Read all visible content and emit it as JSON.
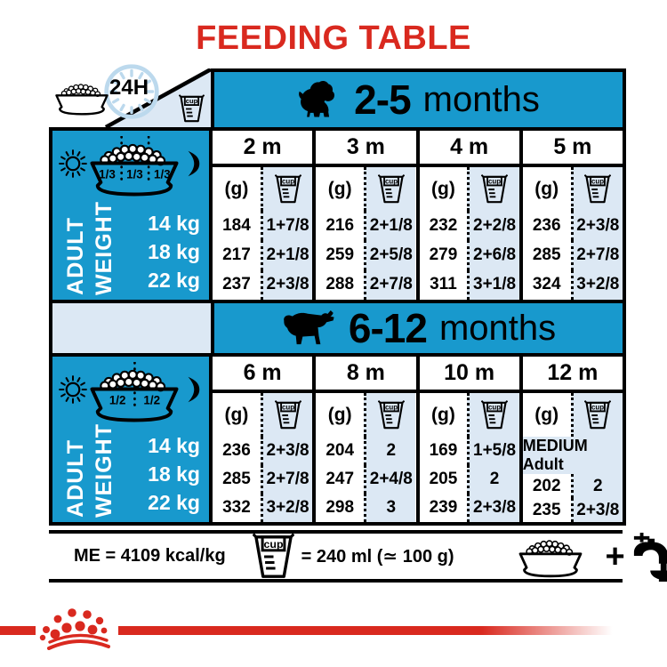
{
  "title": "FEEDING TABLE",
  "corner": {
    "daily_label": "24H",
    "cup_label": "cup"
  },
  "sidebar": {
    "weight_word_1": "ADULT",
    "weight_word_2": "WEIGHT"
  },
  "sections": [
    {
      "age_bold": "2-5",
      "age_rest": "months",
      "dog_icon": "puppy-silhouette",
      "portions": [
        "1/3",
        "1/3",
        "1/3"
      ],
      "weights": [
        "14 kg",
        "18 kg",
        "22 kg"
      ],
      "unit": "(g)",
      "columns": [
        {
          "month": "2 m",
          "grams": [
            "184",
            "217",
            "237"
          ],
          "cups": [
            "1+7/8",
            "2+1/8",
            "2+3/8"
          ]
        },
        {
          "month": "3 m",
          "grams": [
            "216",
            "259",
            "288"
          ],
          "cups": [
            "2+1/8",
            "2+5/8",
            "2+7/8"
          ]
        },
        {
          "month": "4 m",
          "grams": [
            "232",
            "279",
            "311"
          ],
          "cups": [
            "2+2/8",
            "2+6/8",
            "3+1/8"
          ]
        },
        {
          "month": "5 m",
          "grams": [
            "236",
            "285",
            "324"
          ],
          "cups": [
            "2+3/8",
            "2+7/8",
            "3+2/8"
          ]
        }
      ]
    },
    {
      "age_bold": "6-12",
      "age_rest": "months",
      "dog_icon": "adult-dog-silhouette",
      "portions": [
        "1/2",
        "1/2"
      ],
      "weights": [
        "14 kg",
        "18 kg",
        "22 kg"
      ],
      "unit": "(g)",
      "columns": [
        {
          "month": "6 m",
          "grams": [
            "236",
            "285",
            "332"
          ],
          "cups": [
            "2+3/8",
            "2+7/8",
            "3+2/8"
          ]
        },
        {
          "month": "8 m",
          "grams": [
            "204",
            "247",
            "298"
          ],
          "cups": [
            "2",
            "2+4/8",
            "3"
          ]
        },
        {
          "month": "10 m",
          "grams": [
            "169",
            "205",
            "239"
          ],
          "cups": [
            "1+5/8",
            "2",
            "2+3/8"
          ]
        },
        {
          "month": "12 m",
          "special": "MEDIUM Adult",
          "grams": [
            "202",
            "235"
          ],
          "cups": [
            "2",
            "2+3/8"
          ]
        }
      ]
    }
  ],
  "footer": {
    "me_text": "ME = 4109 kcal/kg",
    "cup_label": "cup",
    "cup_equiv": "= 240 ml (≃ 100 g)",
    "plus": "+"
  },
  "colors": {
    "teal": "#1899cd",
    "light_blue": "#dce8f4",
    "red": "#d9291f",
    "clock_blue": "#bcd9ed"
  }
}
